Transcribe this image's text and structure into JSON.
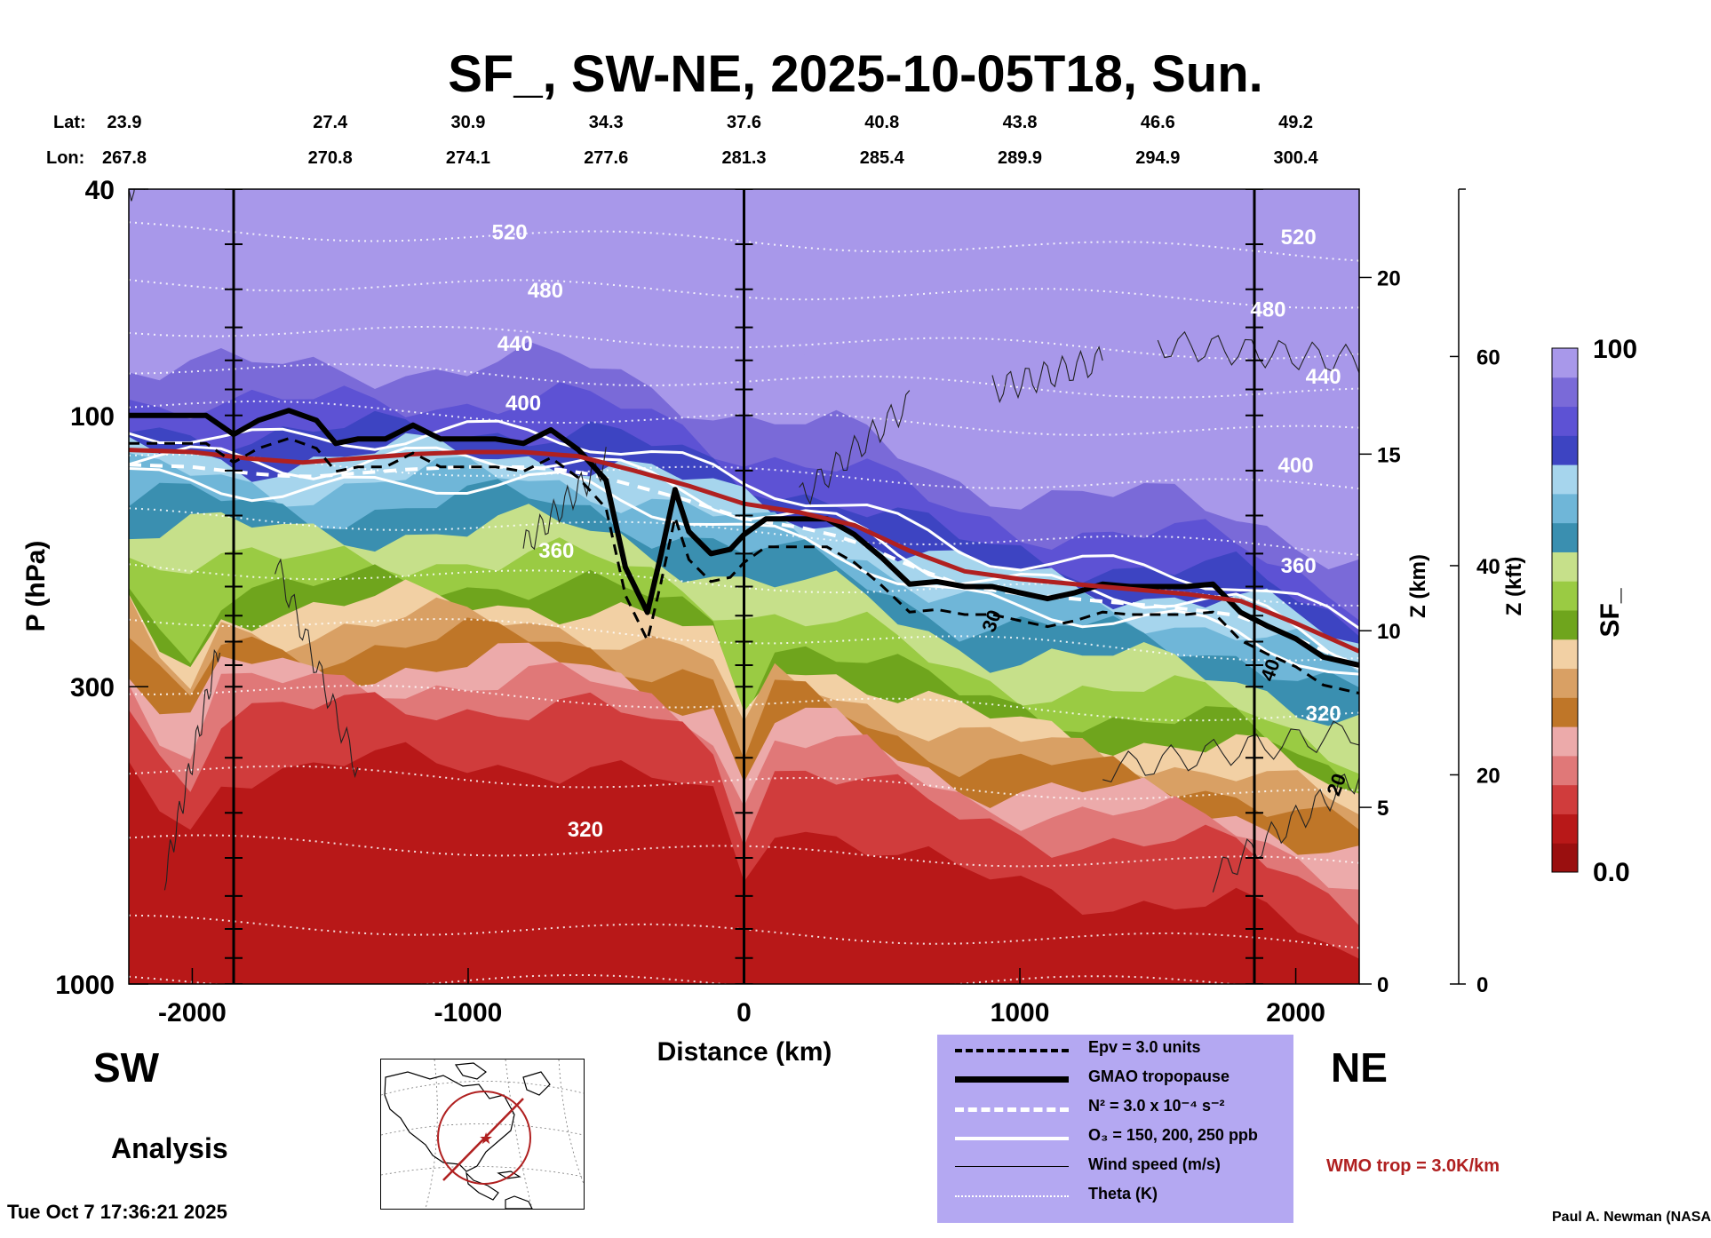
{
  "header": {
    "title": "SF_, SW-NE, 2025-10-05T18, Sun.",
    "lat_label": "Lat:",
    "lon_label": "Lon:",
    "lats": [
      "23.9",
      "27.4",
      "30.9",
      "34.3",
      "37.6",
      "40.8",
      "43.8",
      "46.6",
      "49.2"
    ],
    "lons": [
      "267.8",
      "270.8",
      "274.1",
      "277.6",
      "281.3",
      "285.4",
      "289.9",
      "294.9",
      "300.4"
    ],
    "latlon_distance_km": [
      -2000,
      -1500,
      -1000,
      -500,
      0,
      500,
      1000,
      1500,
      2000
    ]
  },
  "chart_data": {
    "type": "heatmap",
    "title": "SF_, SW-NE, 2025-10-05T18, Sun.",
    "xlabel": "Distance (km)",
    "ylabel": "P (hPa)",
    "y2label": "Z (km)",
    "y3label": "Z (kft)",
    "colorbar_label": "SF_",
    "xlim": [
      -2230,
      2230
    ],
    "ylim_hpa": [
      1000,
      40
    ],
    "x_ticks": [
      -2000,
      -1000,
      0,
      1000,
      2000
    ],
    "x_tick_labels": [
      "-2000",
      "-1000",
      "0",
      "1000",
      "2000"
    ],
    "y_ticks_hpa": [
      40,
      100,
      300,
      1000
    ],
    "y_tick_labels": [
      "40",
      "100",
      "300",
      "1000"
    ],
    "z_km_ticks": [
      0,
      5,
      10,
      15,
      20
    ],
    "z_km_labels": [
      "0",
      "5",
      "10",
      "15",
      "20"
    ],
    "z_kft_ticks": [
      0,
      20,
      40,
      60
    ],
    "z_kft_labels": [
      "0",
      "20",
      "40",
      "60"
    ],
    "colorbar_range": [
      0.0,
      100
    ],
    "colorbar_labels": [
      "100",
      "0.0"
    ],
    "vertical_line_distances_km": [
      -1850,
      0,
      1850
    ],
    "theta_labels": [
      {
        "text": "520",
        "x": -850,
        "p": 49
      },
      {
        "text": "480",
        "x": -720,
        "p": 62
      },
      {
        "text": "440",
        "x": -830,
        "p": 77
      },
      {
        "text": "400",
        "x": -800,
        "p": 98
      },
      {
        "text": "360",
        "x": -680,
        "p": 178
      },
      {
        "text": "320",
        "x": -575,
        "p": 550
      },
      {
        "text": "520",
        "x": 2010,
        "p": 50
      },
      {
        "text": "480",
        "x": 1900,
        "p": 67
      },
      {
        "text": "440",
        "x": 2100,
        "p": 88
      },
      {
        "text": "400",
        "x": 2000,
        "p": 126
      },
      {
        "text": "360",
        "x": 2010,
        "p": 189
      },
      {
        "text": "320",
        "x": 2100,
        "p": 344
      }
    ],
    "wind_labels": [
      {
        "text": "30",
        "x": 920,
        "p": 232
      },
      {
        "text": "40",
        "x": 1930,
        "p": 283
      },
      {
        "text": "20",
        "x": 2170,
        "p": 450
      }
    ],
    "colorbar_colors": [
      "#9a0f0f",
      "#b81818",
      "#d03c3c",
      "#e07878",
      "#ecaaaa",
      "#bf7628",
      "#d9a064",
      "#f2d0a4",
      "#6fa51d",
      "#9acb43",
      "#c6e08a",
      "#3a8fb0",
      "#6fb6d8",
      "#a6d5ed",
      "#3d44c2",
      "#5d52d4",
      "#7a6ad8",
      "#a898ea"
    ],
    "series": [
      {
        "name": "GMAO tropopause",
        "distance_km": [
          -2230,
          -2050,
          -1950,
          -1850,
          -1760,
          -1650,
          -1550,
          -1480,
          -1400,
          -1300,
          -1200,
          -1100,
          -1000,
          -900,
          -800,
          -700,
          -600,
          -500,
          -430,
          -350,
          -300,
          -250,
          -200,
          -120,
          -50,
          0,
          80,
          150,
          300,
          400,
          500,
          600,
          700,
          800,
          900,
          1000,
          1100,
          1200,
          1300,
          1400,
          1500,
          1600,
          1700,
          1800,
          1900,
          2000,
          2100,
          2230
        ],
        "p_hpa": [
          100,
          100,
          100,
          108,
          102,
          98,
          102,
          112,
          110,
          110,
          104,
          110,
          110,
          110,
          112,
          106,
          115,
          130,
          185,
          222,
          175,
          135,
          160,
          175,
          172,
          162,
          152,
          152,
          152,
          162,
          178,
          198,
          196,
          200,
          200,
          205,
          210,
          205,
          198,
          200,
          200,
          200,
          198,
          222,
          235,
          247,
          266,
          275
        ]
      },
      {
        "name": "WMO trop = 3.0K/km",
        "distance_km": [
          -2230,
          -2000,
          -1800,
          -1600,
          -1400,
          -1200,
          -1000,
          -800,
          -600,
          -400,
          -200,
          0,
          200,
          400,
          600,
          800,
          1000,
          1200,
          1400,
          1600,
          1800,
          2000,
          2230
        ],
        "p_hpa": [
          115,
          116,
          119,
          121,
          119,
          117,
          116,
          116,
          118,
          125,
          133,
          143,
          148,
          156,
          173,
          188,
          194,
          198,
          202,
          206,
          212,
          232,
          260
        ]
      }
    ]
  },
  "legend": {
    "items": [
      {
        "label": "Epv = 3.0 units",
        "style": "dashed-black"
      },
      {
        "label": "GMAO tropopause",
        "style": "thick-black"
      },
      {
        "label": "N² = 3.0 x 10⁻⁴ s⁻²",
        "style": "dashed-white"
      },
      {
        "label": "O₃ = 150, 200, 250 ppb",
        "style": "solid-white"
      },
      {
        "label": "Wind speed (m/s)",
        "style": "thin-black"
      },
      {
        "label": "Theta (K)",
        "style": "dotted-white"
      }
    ]
  },
  "annotations": {
    "sw": "SW",
    "ne": "NE",
    "analysis": "Analysis",
    "wmo": "WMO trop = 3.0K/km",
    "datestamp": "Tue Oct  7 17:36:21 2025",
    "author": "Paul A. Newman (NASA"
  },
  "colors": {
    "legend_bg": "#b4a8f2",
    "wmo_red": "#b02020",
    "low_red": "#9a0f0f",
    "top_lavender": "#a898ea"
  }
}
